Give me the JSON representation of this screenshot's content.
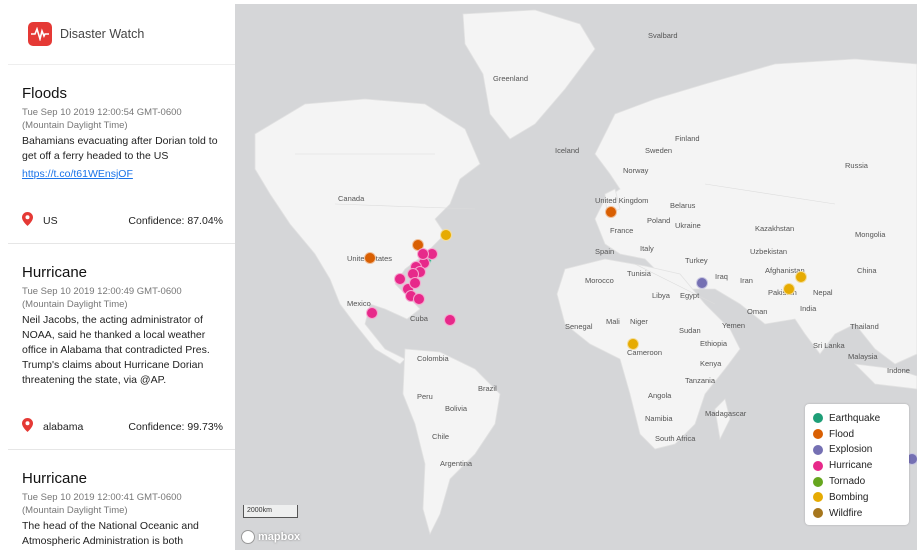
{
  "app": {
    "title": "Disaster Watch"
  },
  "cards": [
    {
      "type": "Floods",
      "time": "Tue Sep 10 2019 12:00:54 GMT-0600 (Mountain Daylight Time)",
      "text": "Bahamians evacuating after Dorian told to get off a ferry headed to the US",
      "link": "https://t.co/t61WEnsjOF",
      "location": "US",
      "confidence": "Confidence: 87.04%"
    },
    {
      "type": "Hurricane",
      "time": "Tue Sep 10 2019 12:00:49 GMT-0600 (Mountain Daylight Time)",
      "text": "Neil Jacobs, the acting administrator of NOAA, said he thanked a local weather office in Alabama that contradicted Pres. Trump's claims about Hurricane Dorian threatening the state, via @AP.",
      "location": "alabama",
      "confidence": "Confidence: 99.73%"
    },
    {
      "type": "Hurricane",
      "time": "Tue Sep 10 2019 12:00:41 GMT-0600 (Mountain Daylight Time)",
      "text": "The head of the National Oceanic and Atmospheric Administration is both"
    }
  ],
  "map_labels": {
    "svalbard": "Svalbard",
    "greenland": "Greenland",
    "iceland": "Iceland",
    "norway": "Norway",
    "sweden": "Sweden",
    "finland": "Finland",
    "russia": "Russia",
    "canada": "Canada",
    "united_states": "United States",
    "mexico": "Mexico",
    "cuba": "Cuba",
    "colombia": "Colombia",
    "peru": "Peru",
    "brazil": "Brazil",
    "bolivia": "Bolivia",
    "chile": "Chile",
    "argentina": "Argentina",
    "united_kingdom": "United Kingdom",
    "france": "France",
    "spain": "Spain",
    "italy": "Italy",
    "poland": "Poland",
    "belarus": "Belarus",
    "ukraine": "Ukraine",
    "turkey": "Turkey",
    "kazakhstan": "Kazakhstan",
    "uzbekistan": "Uzbekistan",
    "mongolia": "Mongolia",
    "china": "China",
    "iraq": "Iraq",
    "iran": "Iran",
    "afghanistan": "Afghanistan",
    "pakistan": "Pakistan",
    "nepal": "Nepal",
    "india": "India",
    "oman": "Oman",
    "yemen": "Yemen",
    "thailand": "Thailand",
    "sri_lanka": "Sri Lanka",
    "malaysia": "Malaysia",
    "indonesia": "Indone",
    "morocco": "Morocco",
    "tunisia": "Tunisia",
    "libya": "Libya",
    "egypt": "Egypt",
    "mali": "Mali",
    "niger": "Niger",
    "senegal": "Senegal",
    "sudan": "Sudan",
    "ethiopia": "Ethiopia",
    "cameroon": "Cameroon",
    "kenya": "Kenya",
    "tanzania": "Tanzania",
    "angola": "Angola",
    "namibia": "Namibia",
    "madagascar": "Madagascar",
    "south_africa": "South Africa"
  },
  "scale_label": "2000km",
  "attribution": "mapbox",
  "legend": [
    {
      "label": "Earthquake",
      "color": "#1e9e77"
    },
    {
      "label": "Flood",
      "color": "#d95f02"
    },
    {
      "label": "Explosion",
      "color": "#7570b3"
    },
    {
      "label": "Hurricane",
      "color": "#e7298a"
    },
    {
      "label": "Tornado",
      "color": "#66a61e"
    },
    {
      "label": "Bombing",
      "color": "#e6ab02"
    },
    {
      "label": "Wildfire",
      "color": "#a6761d"
    }
  ],
  "markers": [
    {
      "type": "Flood"
    },
    {
      "type": "Flood"
    },
    {
      "type": "Flood"
    },
    {
      "type": "Bombing"
    },
    {
      "type": "Bombing"
    },
    {
      "type": "Bombing"
    },
    {
      "type": "Bombing"
    },
    {
      "type": "Earthquake"
    },
    {
      "type": "Explosion"
    },
    {
      "type": "Explosion"
    },
    {
      "type": "Hurricane"
    },
    {
      "type": "Hurricane"
    },
    {
      "type": "Hurricane"
    },
    {
      "type": "Hurricane"
    },
    {
      "type": "Hurricane"
    },
    {
      "type": "Hurricane"
    },
    {
      "type": "Hurricane"
    },
    {
      "type": "Hurricane"
    },
    {
      "type": "Hurricane"
    },
    {
      "type": "Hurricane"
    },
    {
      "type": "Hurricane"
    },
    {
      "type": "Hurricane"
    },
    {
      "type": "Hurricane"
    }
  ]
}
